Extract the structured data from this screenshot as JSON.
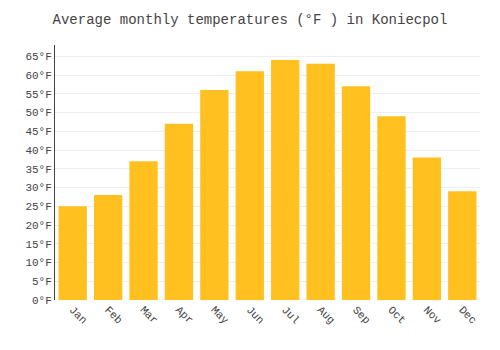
{
  "chart_data": {
    "type": "bar",
    "title": "Average monthly temperatures (°F ) in Koniecpol",
    "categories": [
      "Jan",
      "Feb",
      "Mar",
      "Apr",
      "May",
      "Jun",
      "Jul",
      "Aug",
      "Sep",
      "Oct",
      "Nov",
      "Dec"
    ],
    "values": [
      25,
      28,
      37,
      47,
      56,
      61,
      64,
      63,
      57,
      49,
      38,
      29
    ],
    "color": "#FFC020",
    "ylim": [
      0,
      68
    ],
    "yticks": [
      {
        "value": 0,
        "label": "0°F"
      },
      {
        "value": 5,
        "label": "5°F"
      },
      {
        "value": 10,
        "label": "10°F"
      },
      {
        "value": 15,
        "label": "15°F"
      },
      {
        "value": 20,
        "label": "20°F"
      },
      {
        "value": 25,
        "label": "25°F"
      },
      {
        "value": 30,
        "label": "30°F"
      },
      {
        "value": 35,
        "label": "35°F"
      },
      {
        "value": 40,
        "label": "40°F"
      },
      {
        "value": 45,
        "label": "45°F"
      },
      {
        "value": 50,
        "label": "50°F"
      },
      {
        "value": 55,
        "label": "55°F"
      },
      {
        "value": 60,
        "label": "60°F"
      },
      {
        "value": 65,
        "label": "65°F"
      }
    ],
    "grid": true
  }
}
